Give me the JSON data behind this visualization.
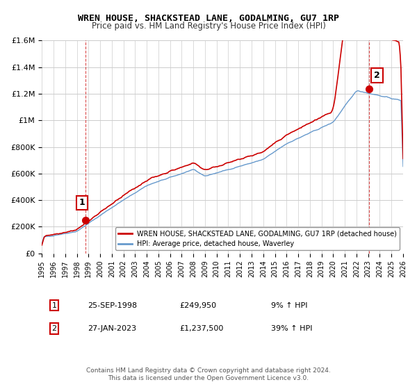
{
  "title": "WREN HOUSE, SHACKSTEAD LANE, GODALMING, GU7 1RP",
  "subtitle": "Price paid vs. HM Land Registry's House Price Index (HPI)",
  "legend_line1": "WREN HOUSE, SHACKSTEAD LANE, GODALMING, GU7 1RP (detached house)",
  "legend_line2": "HPI: Average price, detached house, Waverley",
  "annotation1_date": "25-SEP-1998",
  "annotation1_price": "£249,950",
  "annotation1_hpi": "9% ↑ HPI",
  "annotation2_date": "27-JAN-2023",
  "annotation2_price": "£1,237,500",
  "annotation2_hpi": "39% ↑ HPI",
  "footer": "Contains HM Land Registry data © Crown copyright and database right 2024.\nThis data is licensed under the Open Government Licence v3.0.",
  "red_color": "#cc0000",
  "blue_color": "#6699cc",
  "background_color": "#ffffff",
  "grid_color": "#cccccc",
  "ylim": [
    0,
    1600000
  ],
  "yticks": [
    0,
    200000,
    400000,
    600000,
    800000,
    1000000,
    1200000,
    1400000,
    1600000
  ],
  "sale1_year": 1998.73,
  "sale1_price": 249950,
  "sale2_year": 2023.07,
  "sale2_price": 1237500
}
